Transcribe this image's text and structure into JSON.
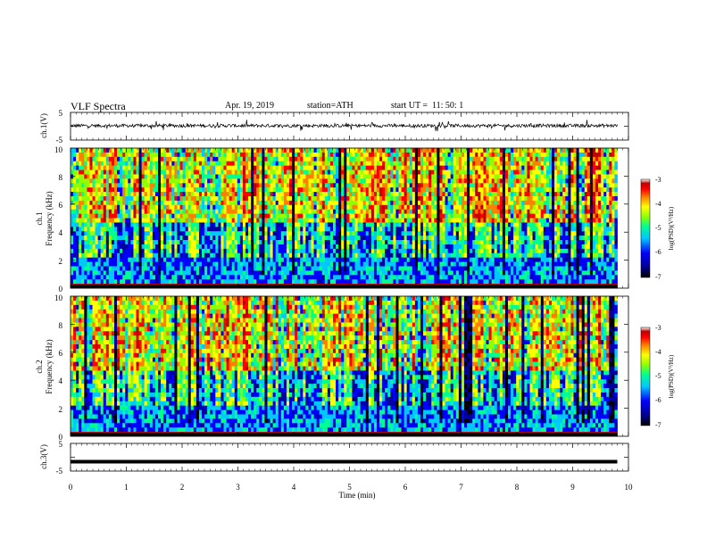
{
  "header": {
    "title": "VLF Spectra",
    "date": "Apr. 19, 2019",
    "station": "station=ATH",
    "start_ut": "start UT =  11: 50: 1"
  },
  "chart_data": [
    {
      "type": "line",
      "panel": "ch1-waveform",
      "ylabel": "ch.1(V)",
      "ylim": [
        -5,
        5
      ],
      "y_ticks": [
        "5",
        "-5"
      ],
      "xlim": [
        0,
        10
      ],
      "data_extent_min": 9.8,
      "baseline_V": 0.2,
      "noise_amplitude_V": 0.6
    },
    {
      "type": "heatmap",
      "panel": "ch1-spectrogram",
      "ylabel": "ch.1\nFrequency (kHz)",
      "ylim": [
        0,
        10
      ],
      "y_ticks": [
        "10",
        "8",
        "6",
        "4",
        "2",
        "0"
      ],
      "xlim": [
        0,
        10
      ],
      "data_extent_min": 9.8,
      "colorbar": {
        "label": "log(PSD)(V²/Hz)",
        "range": [
          -7,
          -3
        ],
        "ticks": [
          "-3",
          "-4",
          "-5",
          "-6",
          "-7"
        ]
      }
    },
    {
      "type": "heatmap",
      "panel": "ch2-spectrogram",
      "ylabel": "ch.2\nFrequency (kHz)",
      "ylim": [
        0,
        10
      ],
      "y_ticks": [
        "10",
        "8",
        "6",
        "4",
        "2",
        "0"
      ],
      "xlim": [
        0,
        10
      ],
      "data_extent_min": 9.8,
      "colorbar": {
        "label": "log(PSD)(V²/Hz)",
        "range": [
          -7,
          -3
        ],
        "ticks": [
          "-3",
          "-4",
          "-5",
          "-6",
          "-7"
        ]
      }
    },
    {
      "type": "line",
      "panel": "ch3-waveform",
      "ylabel": "ch.3(V)",
      "ylim": [
        -5,
        5
      ],
      "y_ticks": [
        "5",
        "-5"
      ],
      "xlim": [
        0,
        10
      ],
      "xlabel": "Time (min)",
      "x_ticks": [
        "0",
        "1",
        "2",
        "3",
        "4",
        "5",
        "6",
        "7",
        "8",
        "9",
        "10"
      ],
      "data_extent_min": 9.8,
      "baseline_V": -1.6
    }
  ],
  "colors": {
    "scale": [
      "#000000",
      "#0000a0",
      "#0000ff",
      "#00c8ff",
      "#00ff90",
      "#90ff00",
      "#ffff00",
      "#ff8000",
      "#ff0000",
      "#c00000",
      "#ffffff"
    ]
  }
}
